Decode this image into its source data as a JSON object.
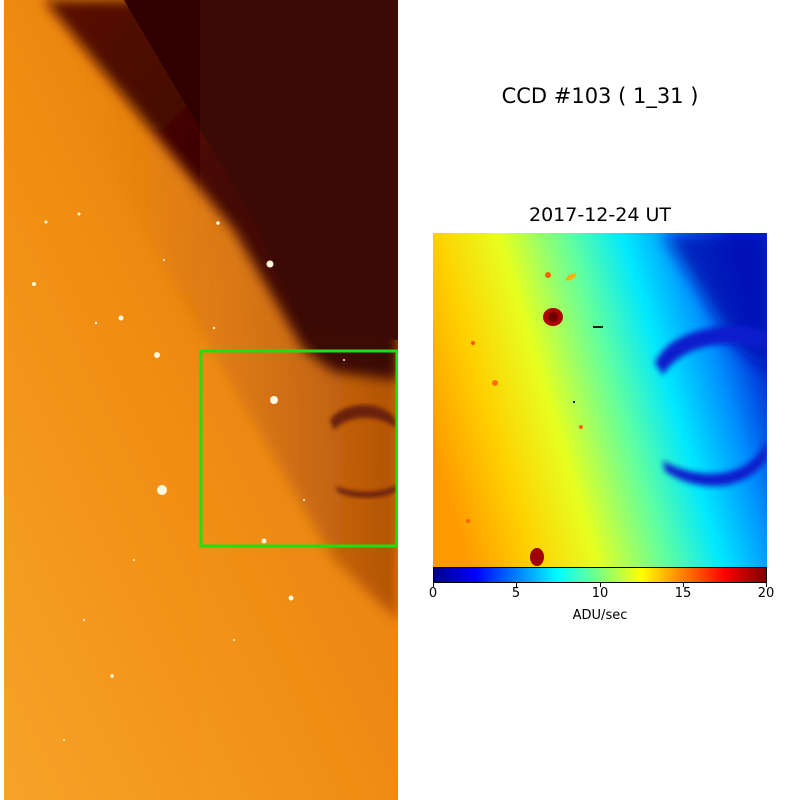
{
  "figure": {
    "ccd_title": "CCD #103 ( 1_31 )",
    "date_title": "2017-12-24 UT"
  },
  "colors": {
    "left_sky": "#f39112",
    "left_dark": "#330000",
    "zoom_box": "#22dd11",
    "jet_colormap": [
      "#00008f",
      "#0000ff",
      "#0080ff",
      "#00ffff",
      "#80ff80",
      "#ffff00",
      "#ff8000",
      "#ff0000",
      "#800000"
    ]
  },
  "colorbar": {
    "min": 0,
    "max": 20,
    "tick_labels": [
      "0",
      "5",
      "10",
      "15",
      "20"
    ],
    "unit_label": "ADU/sec"
  }
}
